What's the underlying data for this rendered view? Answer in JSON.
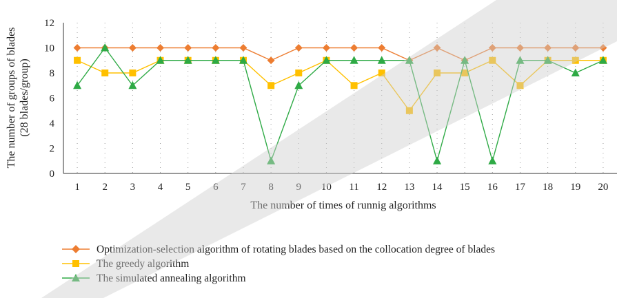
{
  "chart_data": {
    "type": "line",
    "title": "",
    "xlabel": "The number of times of runnig algorithms",
    "ylabel": [
      "The number of groups of blades",
      "(28 blades/group)"
    ],
    "x": [
      1,
      2,
      3,
      4,
      5,
      6,
      7,
      8,
      9,
      10,
      11,
      12,
      13,
      14,
      15,
      16,
      17,
      18,
      19,
      20
    ],
    "x_ticks": [
      "1",
      "2",
      "3",
      "4",
      "5",
      "6",
      "7",
      "8",
      "9",
      "10",
      "11",
      "12",
      "13",
      "14",
      "15",
      "16",
      "17",
      "18",
      "19",
      "20"
    ],
    "ylim": [
      0,
      12
    ],
    "y_ticks": [
      "0",
      "2",
      "4",
      "6",
      "8",
      "10",
      "12"
    ],
    "grid": "vertical dotted",
    "legend_position": "bottom",
    "series": [
      {
        "name": "Optimization-selection algorithm of rotating blades based on the collocation degree of blades",
        "marker": "diamond",
        "color": "#ED7D31",
        "values": [
          10,
          10,
          10,
          10,
          10,
          10,
          10,
          9,
          10,
          10,
          10,
          10,
          9,
          10,
          9,
          10,
          10,
          10,
          10,
          10
        ]
      },
      {
        "name": "The greedy algorithm",
        "marker": "square",
        "color": "#FFC000",
        "values": [
          9,
          8,
          8,
          9,
          9,
          9,
          9,
          7,
          8,
          9,
          7,
          8,
          5,
          8,
          8,
          9,
          7,
          9,
          9,
          9
        ]
      },
      {
        "name": "The simulated annealing algorithm",
        "marker": "triangle",
        "color": "#2EAA45",
        "values": [
          7,
          10,
          7,
          9,
          9,
          9,
          9,
          1,
          7,
          9,
          9,
          9,
          9,
          1,
          9,
          1,
          9,
          9,
          8,
          9
        ]
      }
    ]
  }
}
